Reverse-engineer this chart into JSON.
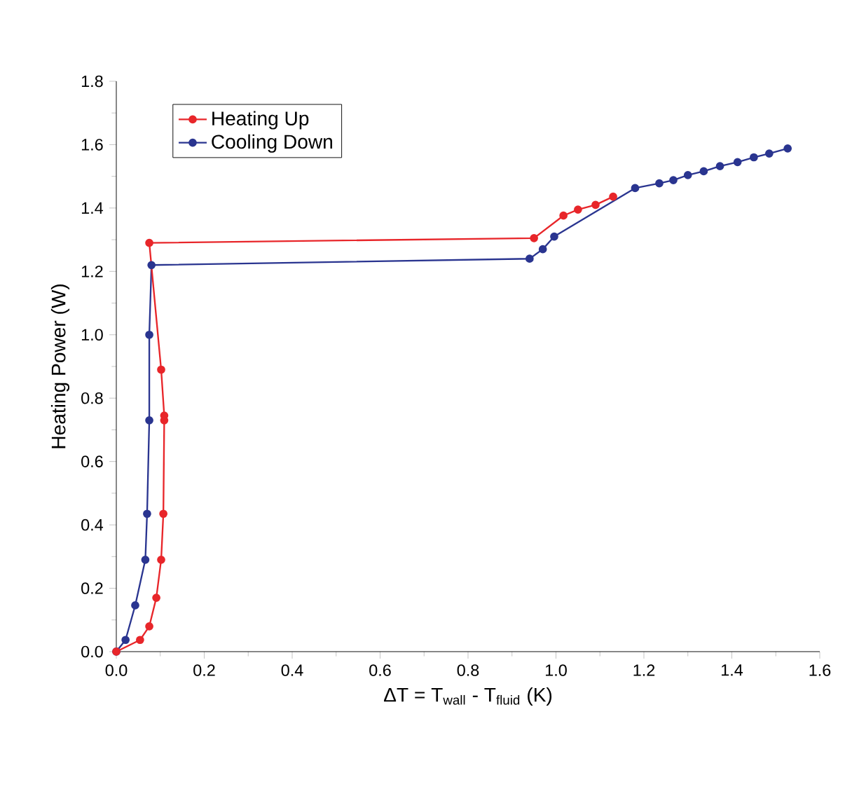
{
  "chart_data": {
    "type": "line",
    "xlabel": "ΔT = T$_{wall}$ - T$_{fluid}$ (K)",
    "ylabel": "Heating Power (W)",
    "xlim": [
      0,
      1.6
    ],
    "ylim": [
      0,
      1.8
    ],
    "xticks": [
      {
        "value": 0,
        "label": "0.0"
      },
      {
        "value": 0.2,
        "label": "0.2"
      },
      {
        "value": 0.4,
        "label": "0.4"
      },
      {
        "value": 0.6,
        "label": "0.6"
      },
      {
        "value": 0.8,
        "label": "0.8"
      },
      {
        "value": 1.0,
        "label": "1.0"
      },
      {
        "value": 1.2,
        "label": "1.2"
      },
      {
        "value": 1.4,
        "label": "1.4"
      },
      {
        "value": 1.6,
        "label": "1.6"
      }
    ],
    "yticks": [
      {
        "value": 0,
        "label": "0.0"
      },
      {
        "value": 0.2,
        "label": "0.2"
      },
      {
        "value": 0.4,
        "label": "0.4"
      },
      {
        "value": 0.6,
        "label": "0.6"
      },
      {
        "value": 0.8,
        "label": "0.8"
      },
      {
        "value": 1.0,
        "label": "1.0"
      },
      {
        "value": 1.2,
        "label": "1.2"
      },
      {
        "value": 1.4,
        "label": "1.4"
      },
      {
        "value": 1.6,
        "label": "1.6"
      },
      {
        "value": 1.8,
        "label": "1.8"
      }
    ],
    "legend": "top left",
    "marker": "circle",
    "line_style": "solid",
    "grid": false,
    "series": [
      {
        "name": "Heating Up",
        "color": "#e8262a",
        "x": [
          0,
          0.054,
          0.075,
          0.091,
          0.102,
          0.107,
          0.109,
          0.109,
          0.102,
          0.075,
          0.95,
          1.017,
          1.05,
          1.09,
          1.13
        ],
        "values": [
          0,
          0.037,
          0.08,
          0.17,
          0.29,
          0.435,
          0.73,
          0.745,
          0.89,
          1.29,
          1.305,
          1.376,
          1.395,
          1.41,
          1.436
        ]
      },
      {
        "name": "Cooling Down",
        "color": "#2a3590",
        "x": [
          1.527,
          1.485,
          1.45,
          1.413,
          1.373,
          1.336,
          1.3,
          1.267,
          1.235,
          1.18,
          0.996,
          0.97,
          0.94,
          0.08,
          0.075,
          0.075,
          0.07,
          0.066,
          0.043,
          0.021,
          0
        ],
        "values": [
          1.588,
          1.572,
          1.56,
          1.545,
          1.532,
          1.516,
          1.504,
          1.488,
          1.478,
          1.463,
          1.31,
          1.27,
          1.24,
          1.22,
          1.0,
          0.73,
          0.435,
          0.29,
          0.146,
          0.037,
          0
        ]
      }
    ]
  }
}
